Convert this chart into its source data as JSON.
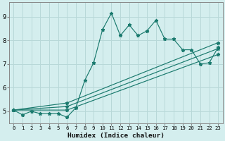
{
  "xlabel": "Humidex (Indice chaleur)",
  "bg_color": "#d4eeee",
  "line_color": "#1a7a6e",
  "grid_color": "#b8d8d8",
  "xlim": [
    -0.5,
    23.5
  ],
  "ylim": [
    4.5,
    9.6
  ],
  "yticks": [
    5,
    6,
    7,
    8,
    9
  ],
  "xticks": [
    0,
    1,
    2,
    3,
    4,
    5,
    6,
    7,
    8,
    9,
    10,
    11,
    12,
    13,
    14,
    15,
    16,
    17,
    18,
    19,
    20,
    21,
    22,
    23
  ],
  "series": [
    {
      "x": [
        0,
        1,
        2,
        3,
        4,
        5,
        6,
        7,
        8,
        9,
        10,
        11,
        12,
        13,
        14,
        15,
        16,
        17,
        18,
        19,
        20,
        21,
        22,
        23
      ],
      "y": [
        5.05,
        4.85,
        5.0,
        4.9,
        4.9,
        4.9,
        4.75,
        5.15,
        6.3,
        7.05,
        8.45,
        9.15,
        8.2,
        8.65,
        8.2,
        8.4,
        8.85,
        8.05,
        8.05,
        7.6,
        7.6,
        7.0,
        7.05,
        7.7
      ]
    },
    {
      "x": [
        0,
        6,
        23
      ],
      "y": [
        5.05,
        5.35,
        7.9
      ]
    },
    {
      "x": [
        0,
        6,
        23
      ],
      "y": [
        5.05,
        5.2,
        7.65
      ]
    },
    {
      "x": [
        0,
        6,
        23
      ],
      "y": [
        5.05,
        5.05,
        7.4
      ]
    }
  ]
}
